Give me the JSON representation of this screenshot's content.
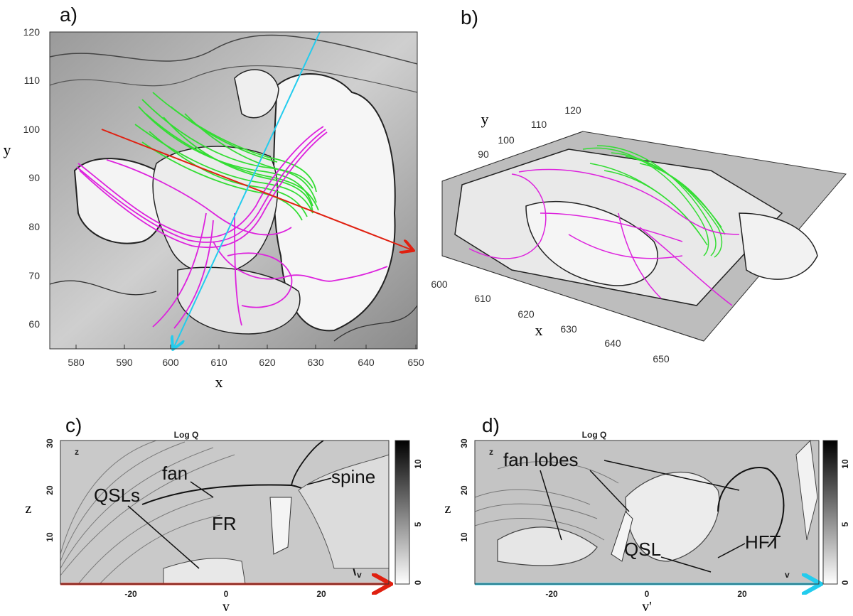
{
  "figure": {
    "panels": {
      "a": {
        "letter": "a)",
        "xlabel": "x",
        "ylabel": "y",
        "xticks": [
          "580",
          "590",
          "600",
          "610",
          "620",
          "630",
          "640",
          "650"
        ],
        "yticks": [
          "120",
          "110",
          "100",
          "90",
          "80",
          "70",
          "60"
        ]
      },
      "b": {
        "letter": "b)",
        "xlabel": "x",
        "ylabel": "y",
        "xticks": [
          "600",
          "610",
          "620",
          "630",
          "640",
          "650"
        ],
        "yticks": [
          "90",
          "100",
          "110",
          "120"
        ]
      },
      "c": {
        "letter": "c)",
        "title": "Log Q",
        "xlabel": "v",
        "ylabel": "z",
        "corner_z": "z",
        "corner_v": "v",
        "xticks": [
          "-20",
          "0",
          "20"
        ],
        "yticks": [
          "30",
          "20",
          "10"
        ],
        "cbar_ticks": [
          "10",
          "5",
          "0"
        ],
        "annotations": {
          "fan": "fan",
          "spine": "spine",
          "qsls": "QSLs",
          "fr": "FR"
        }
      },
      "d": {
        "letter": "d)",
        "title": "Log Q",
        "xlabel": "v'",
        "ylabel": "z",
        "corner_z": "z",
        "corner_v": "v",
        "xticks": [
          "-20",
          "0",
          "20"
        ],
        "yticks": [
          "30",
          "20",
          "10"
        ],
        "cbar_ticks": [
          "10",
          "5",
          "0"
        ],
        "annotations": {
          "fan_lobes": "fan lobes",
          "qsl": "QSL",
          "hft": "HFT"
        }
      }
    },
    "colors": {
      "green_fieldlines": "#33dd33",
      "magenta_fieldlines": "#dd22dd",
      "red_cut": "#e02010",
      "cyan_cut": "#22ccee"
    }
  }
}
